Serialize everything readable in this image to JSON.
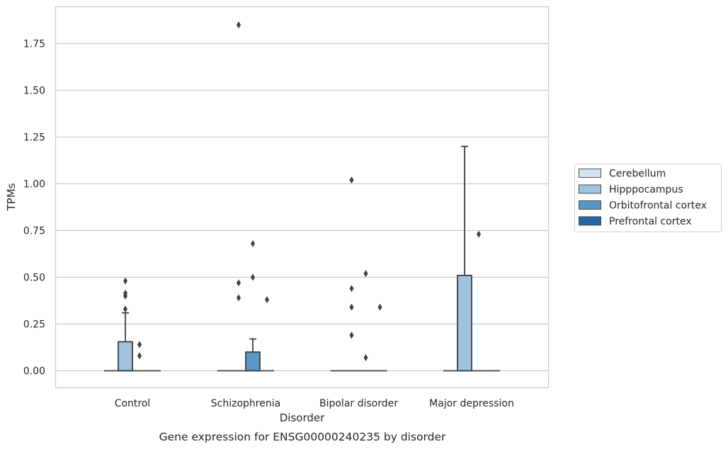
{
  "chart_data": {
    "type": "box",
    "title": "",
    "caption": "Gene expression for ENSG00000240235 by disorder",
    "xlabel": "Disorder",
    "ylabel": "TPMs",
    "ylim": [
      -0.09,
      1.94
    ],
    "yticks": [
      0.0,
      0.25,
      0.5,
      0.75,
      1.0,
      1.25,
      1.5,
      1.75
    ],
    "ytick_labels": [
      "0.00",
      "0.25",
      "0.50",
      "0.75",
      "1.00",
      "1.25",
      "1.50",
      "1.75"
    ],
    "grid": "horizontal",
    "legend_position": "right",
    "categories": [
      "Control",
      "Schizophrenia",
      "Bipolar disorder",
      "Major depression"
    ],
    "series": [
      {
        "name": "Cerebellum",
        "color": "#d3e4f3",
        "boxes": [
          {
            "q1": 0,
            "median": 0,
            "q3": 0,
            "whisker_low": 0,
            "whisker_high": 0,
            "outliers": []
          },
          {
            "q1": 0,
            "median": 0,
            "q3": 0,
            "whisker_low": 0,
            "whisker_high": 0,
            "outliers": []
          },
          {
            "q1": 0,
            "median": 0,
            "q3": 0,
            "whisker_low": 0,
            "whisker_high": 0,
            "outliers": []
          },
          {
            "q1": 0,
            "median": 0,
            "q3": 0,
            "whisker_low": 0,
            "whisker_high": 0,
            "outliers": []
          }
        ]
      },
      {
        "name": "Hipppocampus",
        "color": "#9dc3de",
        "boxes": [
          {
            "q1": 0,
            "median": 0,
            "q3": 0.155,
            "whisker_low": 0,
            "whisker_high": 0.31,
            "outliers": [
              0.33,
              0.4,
              0.415,
              0.48
            ]
          },
          {
            "q1": 0,
            "median": 0,
            "q3": 0,
            "whisker_low": 0,
            "whisker_high": 0,
            "outliers": [
              0.39,
              0.47,
              1.85
            ]
          },
          {
            "q1": 0,
            "median": 0,
            "q3": 0,
            "whisker_low": 0,
            "whisker_high": 0,
            "outliers": [
              0.19,
              0.34,
              0.44,
              1.02
            ]
          },
          {
            "q1": 0,
            "median": 0,
            "q3": 0.51,
            "whisker_low": 0,
            "whisker_high": 1.2,
            "outliers": []
          }
        ]
      },
      {
        "name": "Orbitofrontal cortex",
        "color": "#5897c6",
        "boxes": [
          {
            "q1": 0,
            "median": 0,
            "q3": 0,
            "whisker_low": 0,
            "whisker_high": 0,
            "outliers": [
              0.08,
              0.14
            ]
          },
          {
            "q1": 0,
            "median": 0,
            "q3": 0.1,
            "whisker_low": 0,
            "whisker_high": 0.17,
            "outliers": [
              0.5,
              0.68
            ]
          },
          {
            "q1": 0,
            "median": 0,
            "q3": 0,
            "whisker_low": 0,
            "whisker_high": 0,
            "outliers": [
              0.07,
              0.52
            ]
          },
          {
            "q1": 0,
            "median": 0,
            "q3": 0,
            "whisker_low": 0,
            "whisker_high": 0,
            "outliers": [
              0.73
            ]
          }
        ]
      },
      {
        "name": "Prefrontal cortex",
        "color": "#2766a4",
        "boxes": [
          {
            "q1": 0,
            "median": 0,
            "q3": 0,
            "whisker_low": 0,
            "whisker_high": 0,
            "outliers": []
          },
          {
            "q1": 0,
            "median": 0,
            "q3": 0,
            "whisker_low": 0,
            "whisker_high": 0,
            "outliers": [
              0.38
            ]
          },
          {
            "q1": 0,
            "median": 0,
            "q3": 0,
            "whisker_low": 0,
            "whisker_high": 0,
            "outliers": [
              0.34
            ]
          },
          {
            "q1": 0,
            "median": 0,
            "q3": 0,
            "whisker_low": 0,
            "whisker_high": 0,
            "outliers": []
          }
        ]
      }
    ]
  }
}
